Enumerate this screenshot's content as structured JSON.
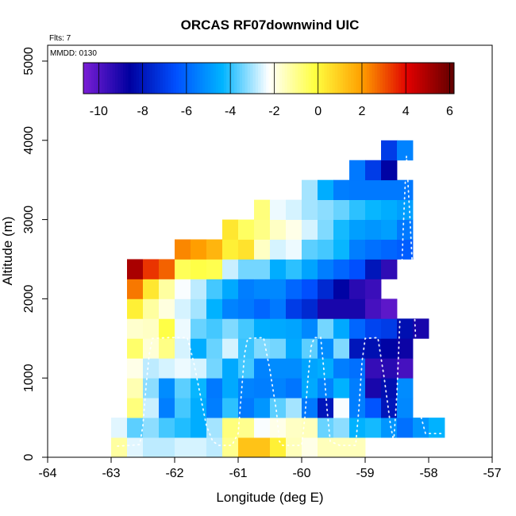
{
  "chart_data": {
    "type": "heatmap",
    "title": "ORCAS RF07downwind UIC",
    "subtitle": "Flts: 7",
    "note": "MMDD: 0130",
    "xlabel": "Longitude (deg E)",
    "ylabel": "Altitude (m)",
    "xlim": [
      -64,
      -57
    ],
    "ylim": [
      0,
      5200
    ],
    "x_ticks": [
      -64,
      -63,
      -62,
      -61,
      -60,
      -59,
      -58,
      -57
    ],
    "y_ticks": [
      0,
      1000,
      2000,
      3000,
      4000,
      5000
    ],
    "cell_width_deg": 0.25,
    "cell_height_m": 250,
    "colorbar": {
      "min": -10.7,
      "max": 6.2,
      "ticks": [
        -10,
        -8,
        -6,
        -4,
        -2,
        0,
        2,
        4,
        6
      ],
      "stops": [
        "#7a1ed6",
        "#0000a0",
        "#0050ff",
        "#00b4ff",
        "#ffffff",
        "#ffff40",
        "#ffa000",
        "#e00000",
        "#600000"
      ]
    },
    "rows": [
      {
        "alt": 0,
        "lon_start": -63.0,
        "values": [
          -1.2,
          -2.5,
          -2.8,
          -2.8,
          -2.6,
          -2.6,
          -2.8,
          -1.0,
          1.2,
          1.2,
          0.2,
          -1.5,
          -2.0,
          -1.5,
          -1.5,
          -1.5
        ]
      },
      {
        "alt": 250,
        "lon_start": -63.0,
        "values": [
          -2.5,
          -3.6,
          -3.2,
          -3.8,
          -4.1,
          -4.5,
          -3.0,
          -0.8,
          -1.0,
          -2.3,
          -2.0,
          -1.6,
          -1.5,
          -3.5,
          -3.2,
          -4.4,
          -4.2,
          -5.0,
          -5.8,
          -5.0,
          -4.4
        ]
      },
      {
        "alt": 500,
        "lon_start": -62.75,
        "values": [
          -0.8,
          -2.7,
          -5.5,
          -3.8,
          -4.5,
          -5.5,
          -4.0,
          -5.6,
          -5.0,
          -3.6,
          -3.0,
          -5.6,
          -8.0,
          -2.3,
          -5.5,
          -6.4,
          -8.0,
          -5.3
        ]
      },
      {
        "alt": 750,
        "lon_start": -62.75,
        "values": [
          -1.4,
          -3.2,
          -5.2,
          -3.6,
          -4.3,
          -5.6,
          -4.6,
          -5.4,
          -5.5,
          -5.4,
          -5.7,
          -4.6,
          -5.4,
          -4.4,
          -5.5,
          -9.0,
          -8.2,
          -5.2
        ]
      },
      {
        "alt": 1000,
        "lon_start": -62.75,
        "values": [
          -2.0,
          -2.8,
          -2.6,
          -2.4,
          -2.6,
          -3.4,
          -4.6,
          -3.8,
          -5.4,
          -5.2,
          -5.2,
          -4.7,
          -4.5,
          -5.5,
          -5.8,
          -9.5,
          -9.3,
          -9.8
        ]
      },
      {
        "alt": 1250,
        "lon_start": -62.75,
        "values": [
          -0.6,
          -1.8,
          -0.9,
          -2.6,
          -4.5,
          -3.5,
          -2.6,
          -3.9,
          -3.3,
          -3.4,
          -4.6,
          -3.6,
          -5.2,
          -3.3,
          -8.0,
          -8.2,
          -8.5,
          -8.8
        ]
      },
      {
        "alt": 1500,
        "lon_start": -62.75,
        "values": [
          -1.7,
          -1.6,
          -0.2,
          -2.4,
          -3.5,
          -3.8,
          -3.3,
          -3.8,
          -4.5,
          -4.6,
          -4.7,
          -5.3,
          -3.4,
          -4.6,
          -6.0,
          -6.8,
          -7.0,
          -8.2,
          -9.0
        ]
      },
      {
        "alt": 1750,
        "lon_start": -62.75,
        "values": [
          0.2,
          -1.2,
          -1.9,
          -2.6,
          -3.0,
          -4.4,
          -5.4,
          -5.6,
          -6.0,
          -5.6,
          -7.0,
          -7.5,
          -9.0,
          -9.0,
          -9.0,
          -9.8,
          -10.2
        ]
      },
      {
        "alt": 2000,
        "lon_start": -62.75,
        "values": [
          2.5,
          0.4,
          -1.2,
          -2.3,
          -2.8,
          -3.8,
          -4.6,
          -5.5,
          -5.3,
          -5.3,
          -6.0,
          -6.5,
          -7.5,
          -8.5,
          -9.3,
          -9.6
        ]
      },
      {
        "alt": 2250,
        "lon_start": -62.75,
        "values": [
          5.0,
          3.4,
          2.8,
          -0.4,
          -0.2,
          -0.3,
          -2.7,
          -3.4,
          -3.4,
          -4.5,
          -4.0,
          -4.7,
          -5.5,
          -6.0,
          -6.5,
          -8.0,
          -9.4
        ]
      },
      {
        "alt": 2500,
        "lon_start": -62.0,
        "values": [
          2.3,
          2.0,
          1.5,
          0.2,
          0.5,
          -1.6,
          -2.6,
          -2.4,
          -3.6,
          -3.8,
          -4.3,
          -5.5,
          -5.8,
          -6.0,
          -6.2
        ]
      },
      {
        "alt": 2750,
        "lon_start": -61.25,
        "values": [
          0.4,
          -0.5,
          -0.9,
          -1.6,
          -2.0,
          -2.6,
          -3.3,
          -4.2,
          -4.8,
          -5.0,
          -4.8,
          -5.6
        ]
      },
      {
        "alt": 3000,
        "lon_start": -60.75,
        "values": [
          -0.8,
          -2.4,
          -2.6,
          -3.0,
          -3.2,
          -3.5,
          -4.0,
          -4.3,
          -4.5,
          -4.8
        ]
      },
      {
        "alt": 3250,
        "lon_start": -60.0,
        "values": [
          -3.0,
          -4.5,
          -5.5,
          -5.6,
          -5.6,
          -5.6,
          -5.6
        ]
      },
      {
        "alt": 3500,
        "lon_start": -59.25,
        "values": [
          -5.6,
          -7.0,
          -8.5
        ]
      },
      {
        "alt": 3750,
        "lon_start": -58.75,
        "values": [
          -7.0,
          -5.4
        ]
      }
    ],
    "flight_track": [
      [
        -62.9,
        140
      ],
      [
        -62.7,
        150
      ],
      [
        -62.55,
        160
      ],
      [
        -62.5,
        400
      ],
      [
        -62.45,
        900
      ],
      [
        -62.4,
        1300
      ],
      [
        -62.35,
        1500
      ],
      [
        -62.1,
        1510
      ],
      [
        -61.8,
        1510
      ],
      [
        -61.7,
        1200
      ],
      [
        -61.6,
        800
      ],
      [
        -61.5,
        400
      ],
      [
        -61.4,
        200
      ],
      [
        -61.3,
        150
      ],
      [
        -61.1,
        150
      ],
      [
        -61.0,
        300
      ],
      [
        -60.95,
        800
      ],
      [
        -60.9,
        1300
      ],
      [
        -60.85,
        1500
      ],
      [
        -60.6,
        1510
      ],
      [
        -60.5,
        1100
      ],
      [
        -60.4,
        600
      ],
      [
        -60.35,
        200
      ],
      [
        -60.3,
        150
      ],
      [
        -60.0,
        150
      ],
      [
        -59.95,
        500
      ],
      [
        -59.9,
        1000
      ],
      [
        -59.85,
        1400
      ],
      [
        -59.8,
        1510
      ],
      [
        -59.7,
        1510
      ],
      [
        -59.65,
        1100
      ],
      [
        -59.6,
        600
      ],
      [
        -59.55,
        200
      ],
      [
        -59.4,
        150
      ],
      [
        -59.15,
        150
      ],
      [
        -59.1,
        600
      ],
      [
        -59.05,
        1200
      ],
      [
        -59.0,
        1500
      ],
      [
        -58.8,
        1510
      ],
      [
        -58.7,
        1000
      ],
      [
        -58.6,
        400
      ],
      [
        -58.55,
        200
      ],
      [
        -58.5,
        800
      ],
      [
        -58.45,
        1800
      ],
      [
        -58.4,
        2900
      ],
      [
        -58.35,
        3800
      ],
      [
        -58.3,
        3100
      ],
      [
        -58.25,
        2300
      ],
      [
        -58.2,
        1400
      ],
      [
        -58.15,
        600
      ],
      [
        -58.05,
        300
      ],
      [
        -57.8,
        300
      ]
    ]
  }
}
